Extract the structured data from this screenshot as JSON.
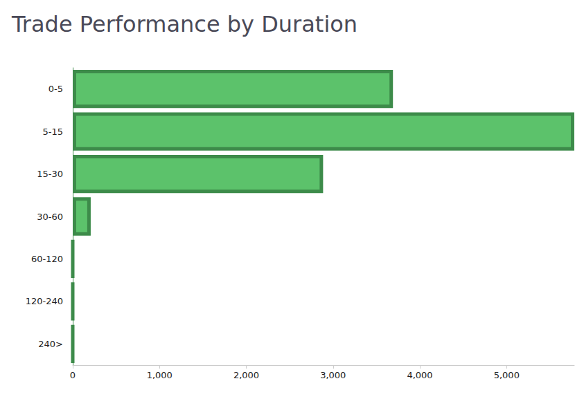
{
  "chart_data": {
    "type": "bar",
    "orientation": "horizontal",
    "title": "Trade Performance by Duration",
    "categories": [
      "0-5",
      "5-15",
      "15-30",
      "30-60",
      "60-120",
      "120-240",
      "240>"
    ],
    "values": [
      3690,
      5780,
      2885,
      207,
      0,
      0,
      0
    ],
    "color": "#5cc26b",
    "xlim": [
      0,
      5780
    ],
    "xticks": [
      0,
      {
        "value": 1000,
        "label": "1,000"
      },
      {
        "value": 2000,
        "label": "2,000"
      },
      {
        "value": 3000,
        "label": "3,000"
      },
      {
        "value": 4000,
        "label": "4,000"
      },
      {
        "value": 5000,
        "label": "5,000"
      }
    ],
    "grid": false
  }
}
